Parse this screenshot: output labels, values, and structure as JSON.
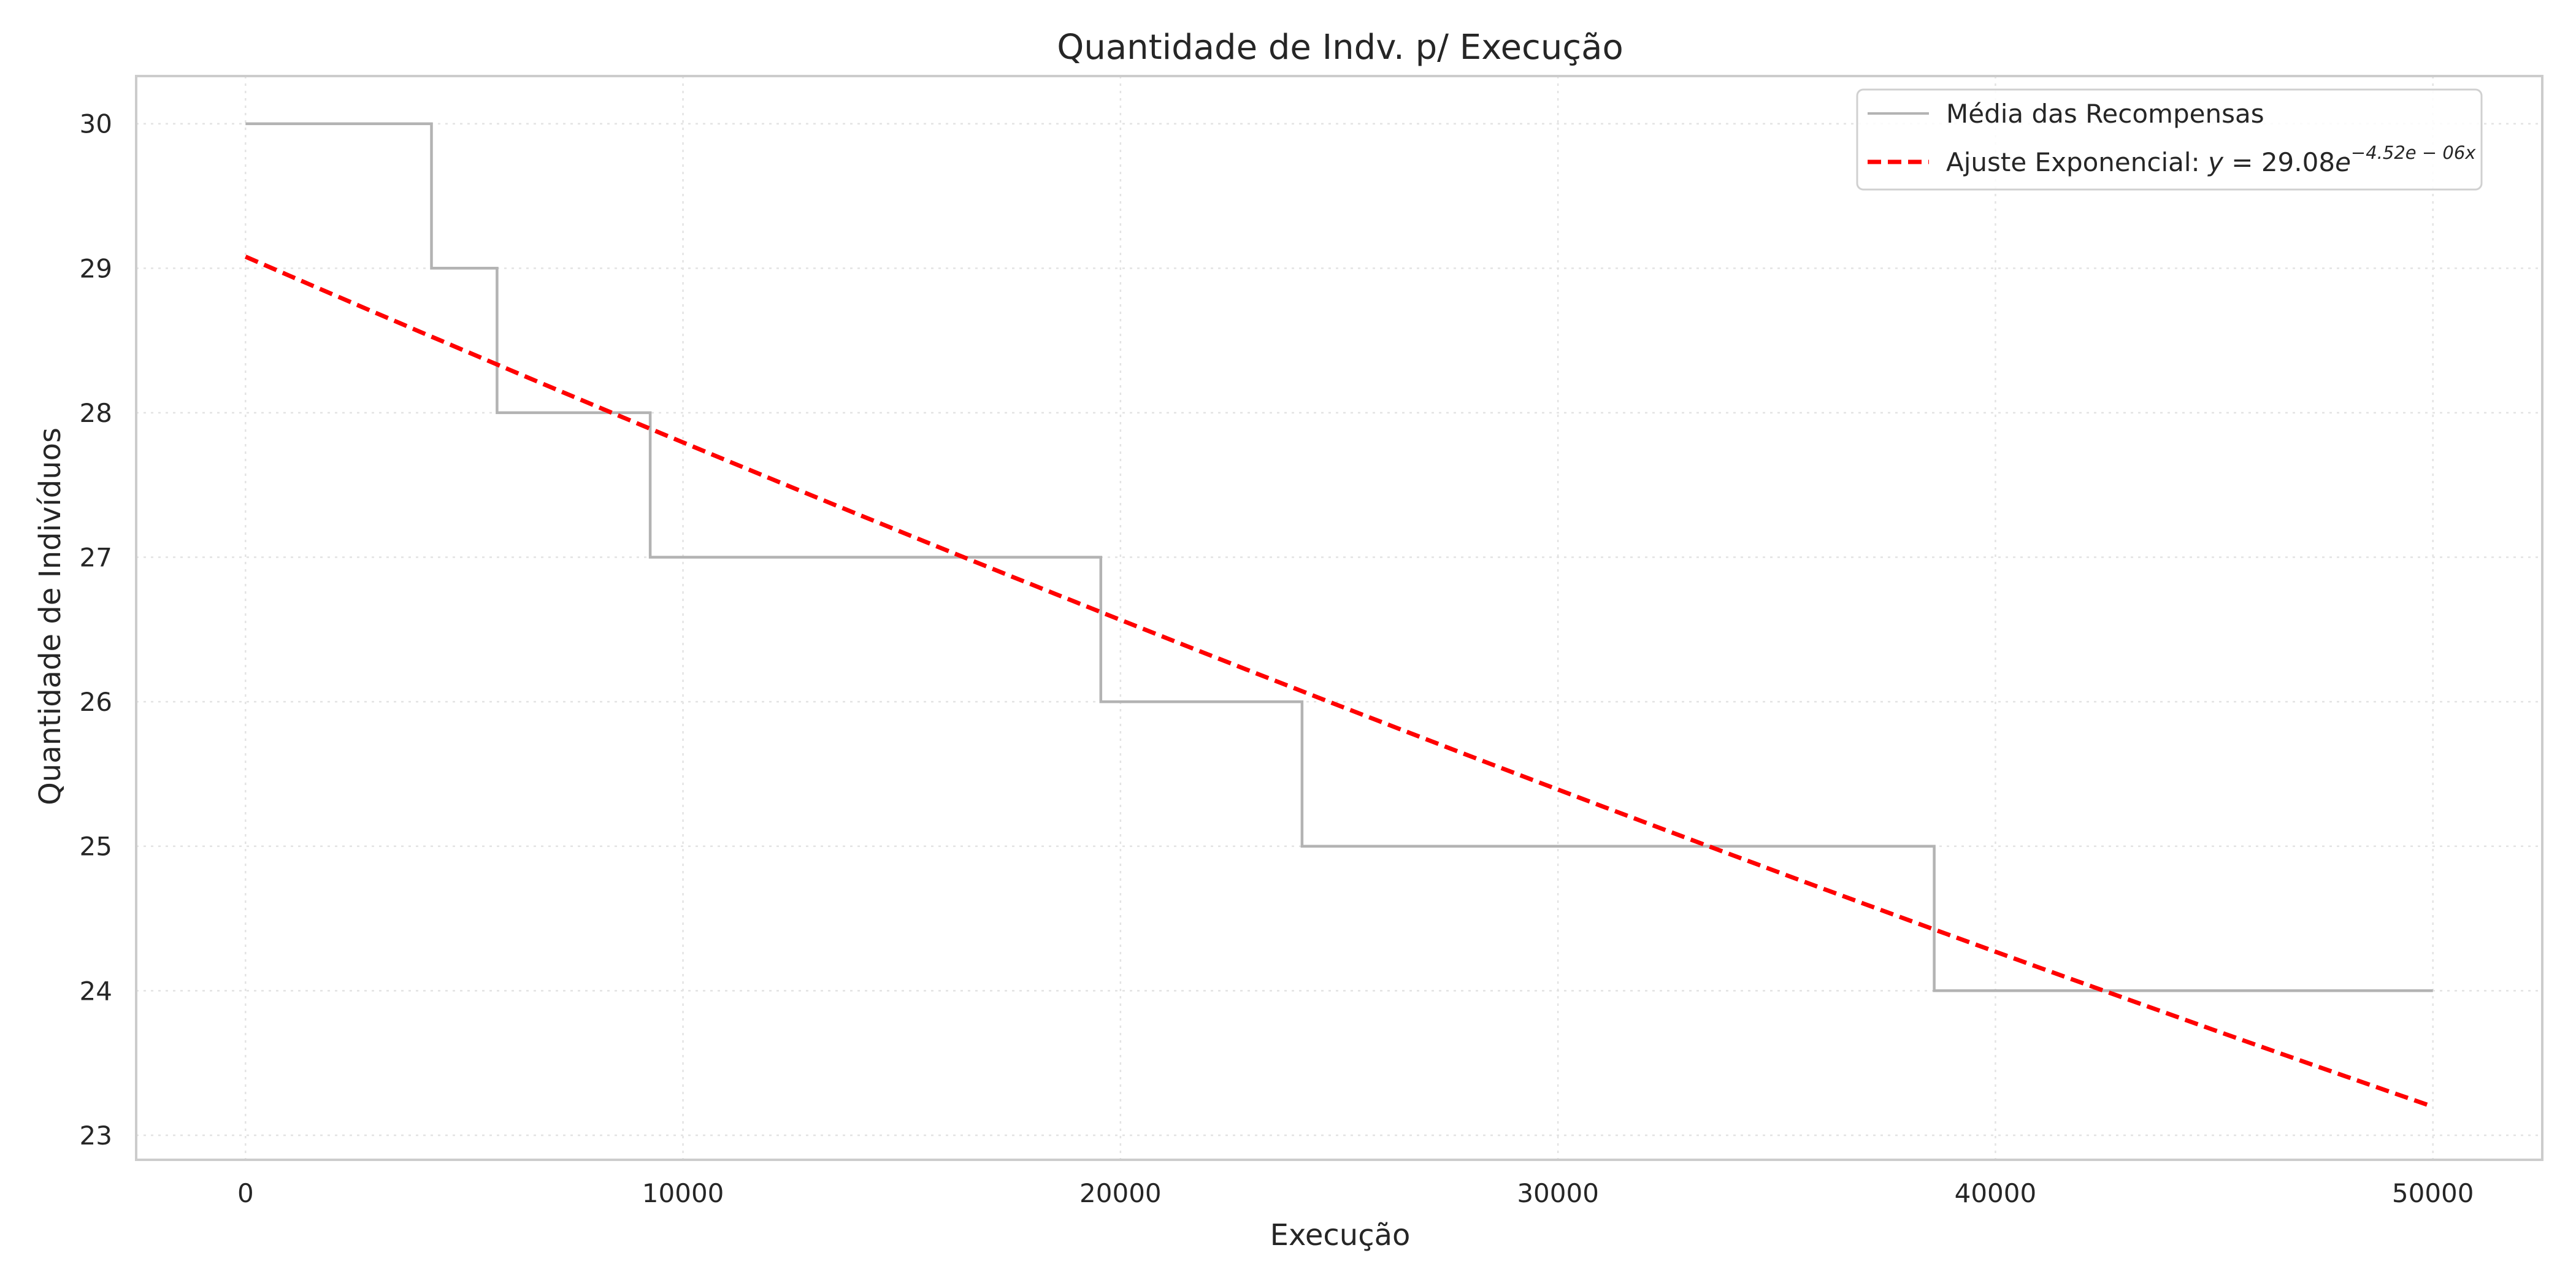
{
  "chart_data": {
    "type": "line",
    "title": "Quantidade de Indv. p/ Execução",
    "xlabel": "Execução",
    "ylabel": "Quantidade de Indivíduos",
    "xlim": [
      -2500,
      52500
    ],
    "ylim": [
      22.83,
      30.33
    ],
    "xticks": [
      0,
      10000,
      20000,
      30000,
      40000,
      50000
    ],
    "xtick_labels": [
      "0",
      "10000",
      "20000",
      "30000",
      "40000",
      "50000"
    ],
    "yticks": [
      23,
      24,
      25,
      26,
      27,
      28,
      29,
      30
    ],
    "ytick_labels": [
      "23",
      "24",
      "25",
      "26",
      "27",
      "28",
      "29",
      "30"
    ],
    "grid": true,
    "legend_position": "top-right",
    "series": [
      {
        "name": "Média das Recompensas",
        "kind": "step",
        "color": "#b3b3b3",
        "x": [
          0,
          4250,
          4250,
          5750,
          5750,
          9250,
          9250,
          19550,
          19550,
          24150,
          24150,
          38600,
          38600,
          50000
        ],
        "y": [
          30,
          30,
          29,
          29,
          28,
          28,
          27,
          27,
          26,
          26,
          25,
          25,
          24,
          24
        ]
      },
      {
        "name": "Ajuste Exponencial: ",
        "legend_formula": {
          "lhs": "y",
          "coef": "29.08",
          "base": "e",
          "exponent": "−4.52e − 06x"
        },
        "kind": "exponential-fit",
        "color": "#ff0000",
        "dash": true,
        "a": 29.08,
        "b": -4.52e-06,
        "x_range": [
          0,
          50000
        ]
      }
    ]
  }
}
